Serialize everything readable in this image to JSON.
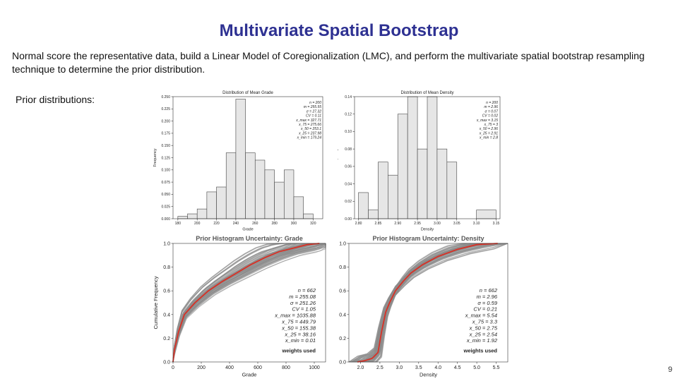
{
  "slide": {
    "title": "Multivariate Spatial Bootstrap",
    "body": "Normal score the representative data, build a Linear Model of Coregionalization (LMC), and perform the multivariate spatial bootstrap resampling technique to determine the prior distribution.",
    "prior_label": "Prior distributions:",
    "page_number": "9"
  },
  "colors": {
    "title": "#2e3192",
    "bar_fill": "#e6e6e6",
    "bar_stroke": "#444444",
    "realization": "#8c8c8c",
    "prior_cdf": "#d93025"
  },
  "chart_data": [
    {
      "id": "grade-hist",
      "type": "bar",
      "title": "Distribution of Mean Grade",
      "xlabel": "Grade",
      "ylabel": "Frequency",
      "xlim": [
        175,
        330
      ],
      "ylim": [
        0,
        0.25
      ],
      "xticks": [
        180,
        200,
        220,
        240,
        260,
        280,
        300,
        320
      ],
      "yticks": [
        0.0,
        0.025,
        0.05,
        0.075,
        0.1,
        0.125,
        0.15,
        0.175,
        0.2,
        0.225,
        0.25
      ],
      "ytick_labels": [
        "0.000",
        "0.025",
        "0.050",
        "0.075",
        "0.100",
        "0.125",
        "0.150",
        "0.175",
        "0.200",
        "0.225",
        "0.250"
      ],
      "bins": [
        [
          180,
          190,
          0.005
        ],
        [
          190,
          200,
          0.01
        ],
        [
          200,
          210,
          0.02
        ],
        [
          210,
          220,
          0.055
        ],
        [
          220,
          230,
          0.065
        ],
        [
          230,
          240,
          0.135
        ],
        [
          240,
          250,
          0.245
        ],
        [
          250,
          260,
          0.135
        ],
        [
          260,
          270,
          0.12
        ],
        [
          270,
          280,
          0.1
        ],
        [
          280,
          290,
          0.075
        ],
        [
          290,
          300,
          0.1
        ],
        [
          300,
          310,
          0.045
        ],
        [
          310,
          320,
          0.01
        ]
      ],
      "stats": [
        "n = 200",
        "m = 255.55",
        "σ = 27.32",
        "CV = 0.11",
        "x_max = 327.71",
        "x_75 = 275.66",
        "x_50 = 253.1",
        "x_25 = 237.98",
        "x_min = 179.24"
      ]
    },
    {
      "id": "density-hist",
      "type": "bar",
      "title": "Distribution of Mean Density",
      "xlabel": "Density",
      "ylabel": "Frequency",
      "xlim": [
        2.79,
        3.16
      ],
      "ylim": [
        0,
        0.14
      ],
      "xticks": [
        2.8,
        2.85,
        2.9,
        2.95,
        3.0,
        3.05,
        3.1,
        3.15
      ],
      "xtick_labels": [
        "2.80",
        "2.85",
        "2.90",
        "2.95",
        "3.00",
        "3.05",
        "3.10",
        "3.15"
      ],
      "yticks": [
        0.0,
        0.02,
        0.04,
        0.06,
        0.08,
        0.1,
        0.12,
        0.14
      ],
      "ytick_labels": [
        "0.00",
        "0.02",
        "0.04",
        "0.06",
        "0.08",
        "0.10",
        "0.12",
        "0.14"
      ],
      "bins": [
        [
          2.8,
          2.825,
          0.03
        ],
        [
          2.825,
          2.85,
          0.01
        ],
        [
          2.85,
          2.875,
          0.065
        ],
        [
          2.875,
          2.9,
          0.05
        ],
        [
          2.9,
          2.925,
          0.12
        ],
        [
          2.925,
          2.95,
          0.14
        ],
        [
          2.95,
          2.975,
          0.08
        ],
        [
          2.975,
          3.0,
          0.14
        ],
        [
          3.0,
          3.025,
          0.08
        ],
        [
          3.025,
          3.05,
          0.065
        ],
        [
          3.05,
          3.075,
          0.0
        ],
        [
          3.075,
          3.1,
          0.0
        ],
        [
          3.1,
          3.15,
          0.01
        ]
      ],
      "stats": [
        "n = 200",
        "m = 2.96",
        "σ = 0.07",
        "CV = 0.02",
        "x_max = 3.15",
        "x_75 = 3",
        "x_50 = 2.96",
        "x_25 = 2.91",
        "x_min = 2.8"
      ]
    },
    {
      "id": "grade-cdf",
      "type": "line",
      "title": "Prior Histogram Uncertainty: Grade",
      "xlabel": "Grade",
      "ylabel": "Cumulative Frequency",
      "xlim": [
        0,
        1080
      ],
      "ylim": [
        0,
        1
      ],
      "xticks": [
        0,
        200,
        400,
        600,
        800,
        1000
      ],
      "yticks": [
        0.0,
        0.2,
        0.4,
        0.6,
        0.8,
        1.0
      ],
      "ytick_labels": [
        "0.0",
        "0.2",
        "0.4",
        "0.6",
        "0.8",
        "1.0"
      ],
      "prior": {
        "x": [
          0.01,
          10,
          38.16,
          80,
          155.38,
          250,
          350,
          449.79,
          550,
          650,
          750,
          850,
          950,
          1035.88
        ],
        "y": [
          0.0,
          0.1,
          0.25,
          0.4,
          0.5,
          0.6,
          0.68,
          0.75,
          0.82,
          0.88,
          0.93,
          0.96,
          0.99,
          1.0
        ]
      },
      "stats": [
        "n = 662",
        "m = 255.08",
        "σ = 251.26",
        "CV = 1.05",
        "x_max = 1035.88",
        "x_75 = 449.79",
        "x_50 = 155.38",
        "x_25 = 38.16",
        "x_min = 0.01",
        "weights used"
      ]
    },
    {
      "id": "density-cdf",
      "type": "line",
      "title": "Prior Histogram Uncertainty: Density",
      "xlabel": "Density",
      "ylabel": "Cumulative Frequency",
      "xlim": [
        1.7,
        5.8
      ],
      "ylim": [
        0,
        1
      ],
      "xticks": [
        2.0,
        2.5,
        3.0,
        3.5,
        4.0,
        4.5,
        5.0,
        5.5
      ],
      "xtick_labels": [
        "2.0",
        "2.5",
        "3.0",
        "3.5",
        "4.0",
        "4.5",
        "5.0",
        "5.5"
      ],
      "yticks": [
        0.0,
        0.2,
        0.4,
        0.6,
        0.8,
        1.0
      ],
      "ytick_labels": [
        "0.0",
        "0.2",
        "0.4",
        "0.6",
        "0.8",
        "1.0"
      ],
      "prior": {
        "x": [
          1.92,
          2.1,
          2.3,
          2.45,
          2.54,
          2.65,
          2.75,
          2.9,
          3.1,
          3.3,
          3.6,
          4.0,
          4.5,
          5.0,
          5.54
        ],
        "y": [
          0.0,
          0.01,
          0.03,
          0.08,
          0.25,
          0.42,
          0.5,
          0.6,
          0.68,
          0.75,
          0.82,
          0.89,
          0.95,
          0.99,
          1.0
        ]
      },
      "stats": [
        "n = 662",
        "m = 2.96",
        "σ = 0.59",
        "CV = 0.21",
        "x_max = 5.54",
        "x_75 = 3.3",
        "x_50 = 2.75",
        "x_25 = 2.54",
        "x_min = 1.92",
        "weights used"
      ]
    }
  ]
}
